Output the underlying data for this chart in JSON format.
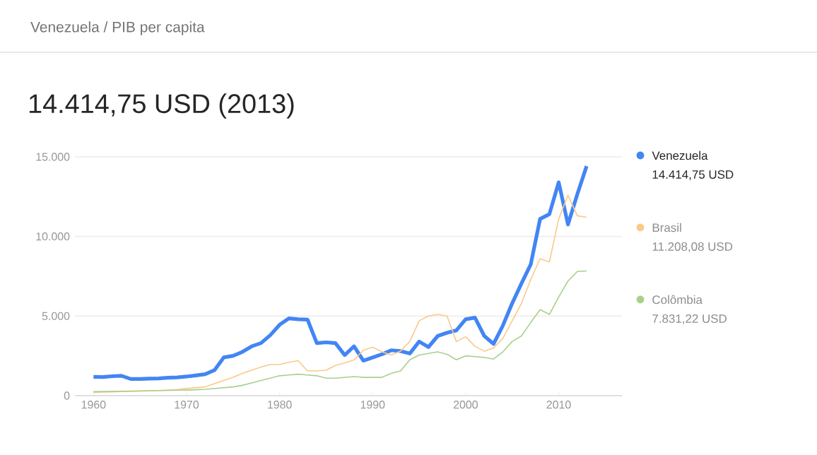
{
  "chart_data": {
    "type": "line",
    "title": "Venezuela / PIB per capita",
    "subtitle": "14.414,75 USD (2013)",
    "x": [
      1960,
      1961,
      1962,
      1963,
      1964,
      1965,
      1966,
      1967,
      1968,
      1969,
      1970,
      1971,
      1972,
      1973,
      1974,
      1975,
      1976,
      1977,
      1978,
      1979,
      1980,
      1981,
      1982,
      1983,
      1984,
      1985,
      1986,
      1987,
      1988,
      1989,
      1990,
      1991,
      1992,
      1993,
      1994,
      1995,
      1996,
      1997,
      1998,
      1999,
      2000,
      2001,
      2002,
      2003,
      2004,
      2005,
      2006,
      2007,
      2008,
      2009,
      2010,
      2011,
      2012,
      2013
    ],
    "series": [
      {
        "name": "Venezuela",
        "color": "#4285f4",
        "values": [
          1180,
          1170,
          1220,
          1250,
          1050,
          1050,
          1070,
          1080,
          1130,
          1150,
          1200,
          1270,
          1350,
          1600,
          2400,
          2500,
          2750,
          3100,
          3300,
          3800,
          4450,
          4850,
          4800,
          4780,
          3300,
          3350,
          3300,
          2550,
          3100,
          2200,
          2400,
          2600,
          2850,
          2800,
          2650,
          3400,
          3050,
          3750,
          3950,
          4100,
          4800,
          4900,
          3750,
          3250,
          4400,
          5800,
          7050,
          8250,
          11100,
          11400,
          13400,
          10750,
          12650,
          14414.75
        ]
      },
      {
        "name": "Brasil",
        "color": "#fbc98a",
        "values": [
          200,
          220,
          240,
          260,
          270,
          280,
          300,
          320,
          350,
          390,
          450,
          500,
          550,
          750,
          950,
          1150,
          1400,
          1600,
          1800,
          1950,
          1950,
          2100,
          2200,
          1550,
          1550,
          1600,
          1900,
          2050,
          2250,
          2850,
          3050,
          2750,
          2550,
          2800,
          3400,
          4700,
          5000,
          5100,
          5000,
          3400,
          3700,
          3100,
          2800,
          3000,
          3600,
          4700,
          5800,
          7300,
          8600,
          8400,
          11100,
          12600,
          11300,
          11208.08
        ]
      },
      {
        "name": "Colômbia",
        "color": "#a8d08d",
        "values": [
          250,
          260,
          270,
          280,
          290,
          300,
          310,
          320,
          330,
          340,
          350,
          370,
          400,
          450,
          500,
          550,
          650,
          800,
          950,
          1100,
          1250,
          1300,
          1350,
          1300,
          1250,
          1100,
          1100,
          1150,
          1200,
          1150,
          1150,
          1150,
          1400,
          1550,
          2250,
          2550,
          2650,
          2750,
          2600,
          2250,
          2500,
          2450,
          2400,
          2300,
          2750,
          3400,
          3750,
          4600,
          5400,
          5100,
          6200,
          7200,
          7800,
          7831.22
        ]
      }
    ],
    "annotations": [
      "14.414,75 USD",
      "11.208,08 USD",
      "7.831,22 USD"
    ],
    "xlim": [
      1958,
      2016.8
    ],
    "ylim": [
      0,
      15000
    ],
    "xticks": [
      1960,
      1970,
      1980,
      1990,
      2000,
      2010
    ],
    "yticks": [
      {
        "value": 0,
        "label": "0"
      },
      {
        "value": 5000,
        "label": "5.000"
      },
      {
        "value": 10000,
        "label": "10.000"
      },
      {
        "value": 15000,
        "label": "15.000"
      }
    ],
    "grid": "y",
    "legend": "right",
    "marker": "none",
    "line_style": "solid"
  }
}
